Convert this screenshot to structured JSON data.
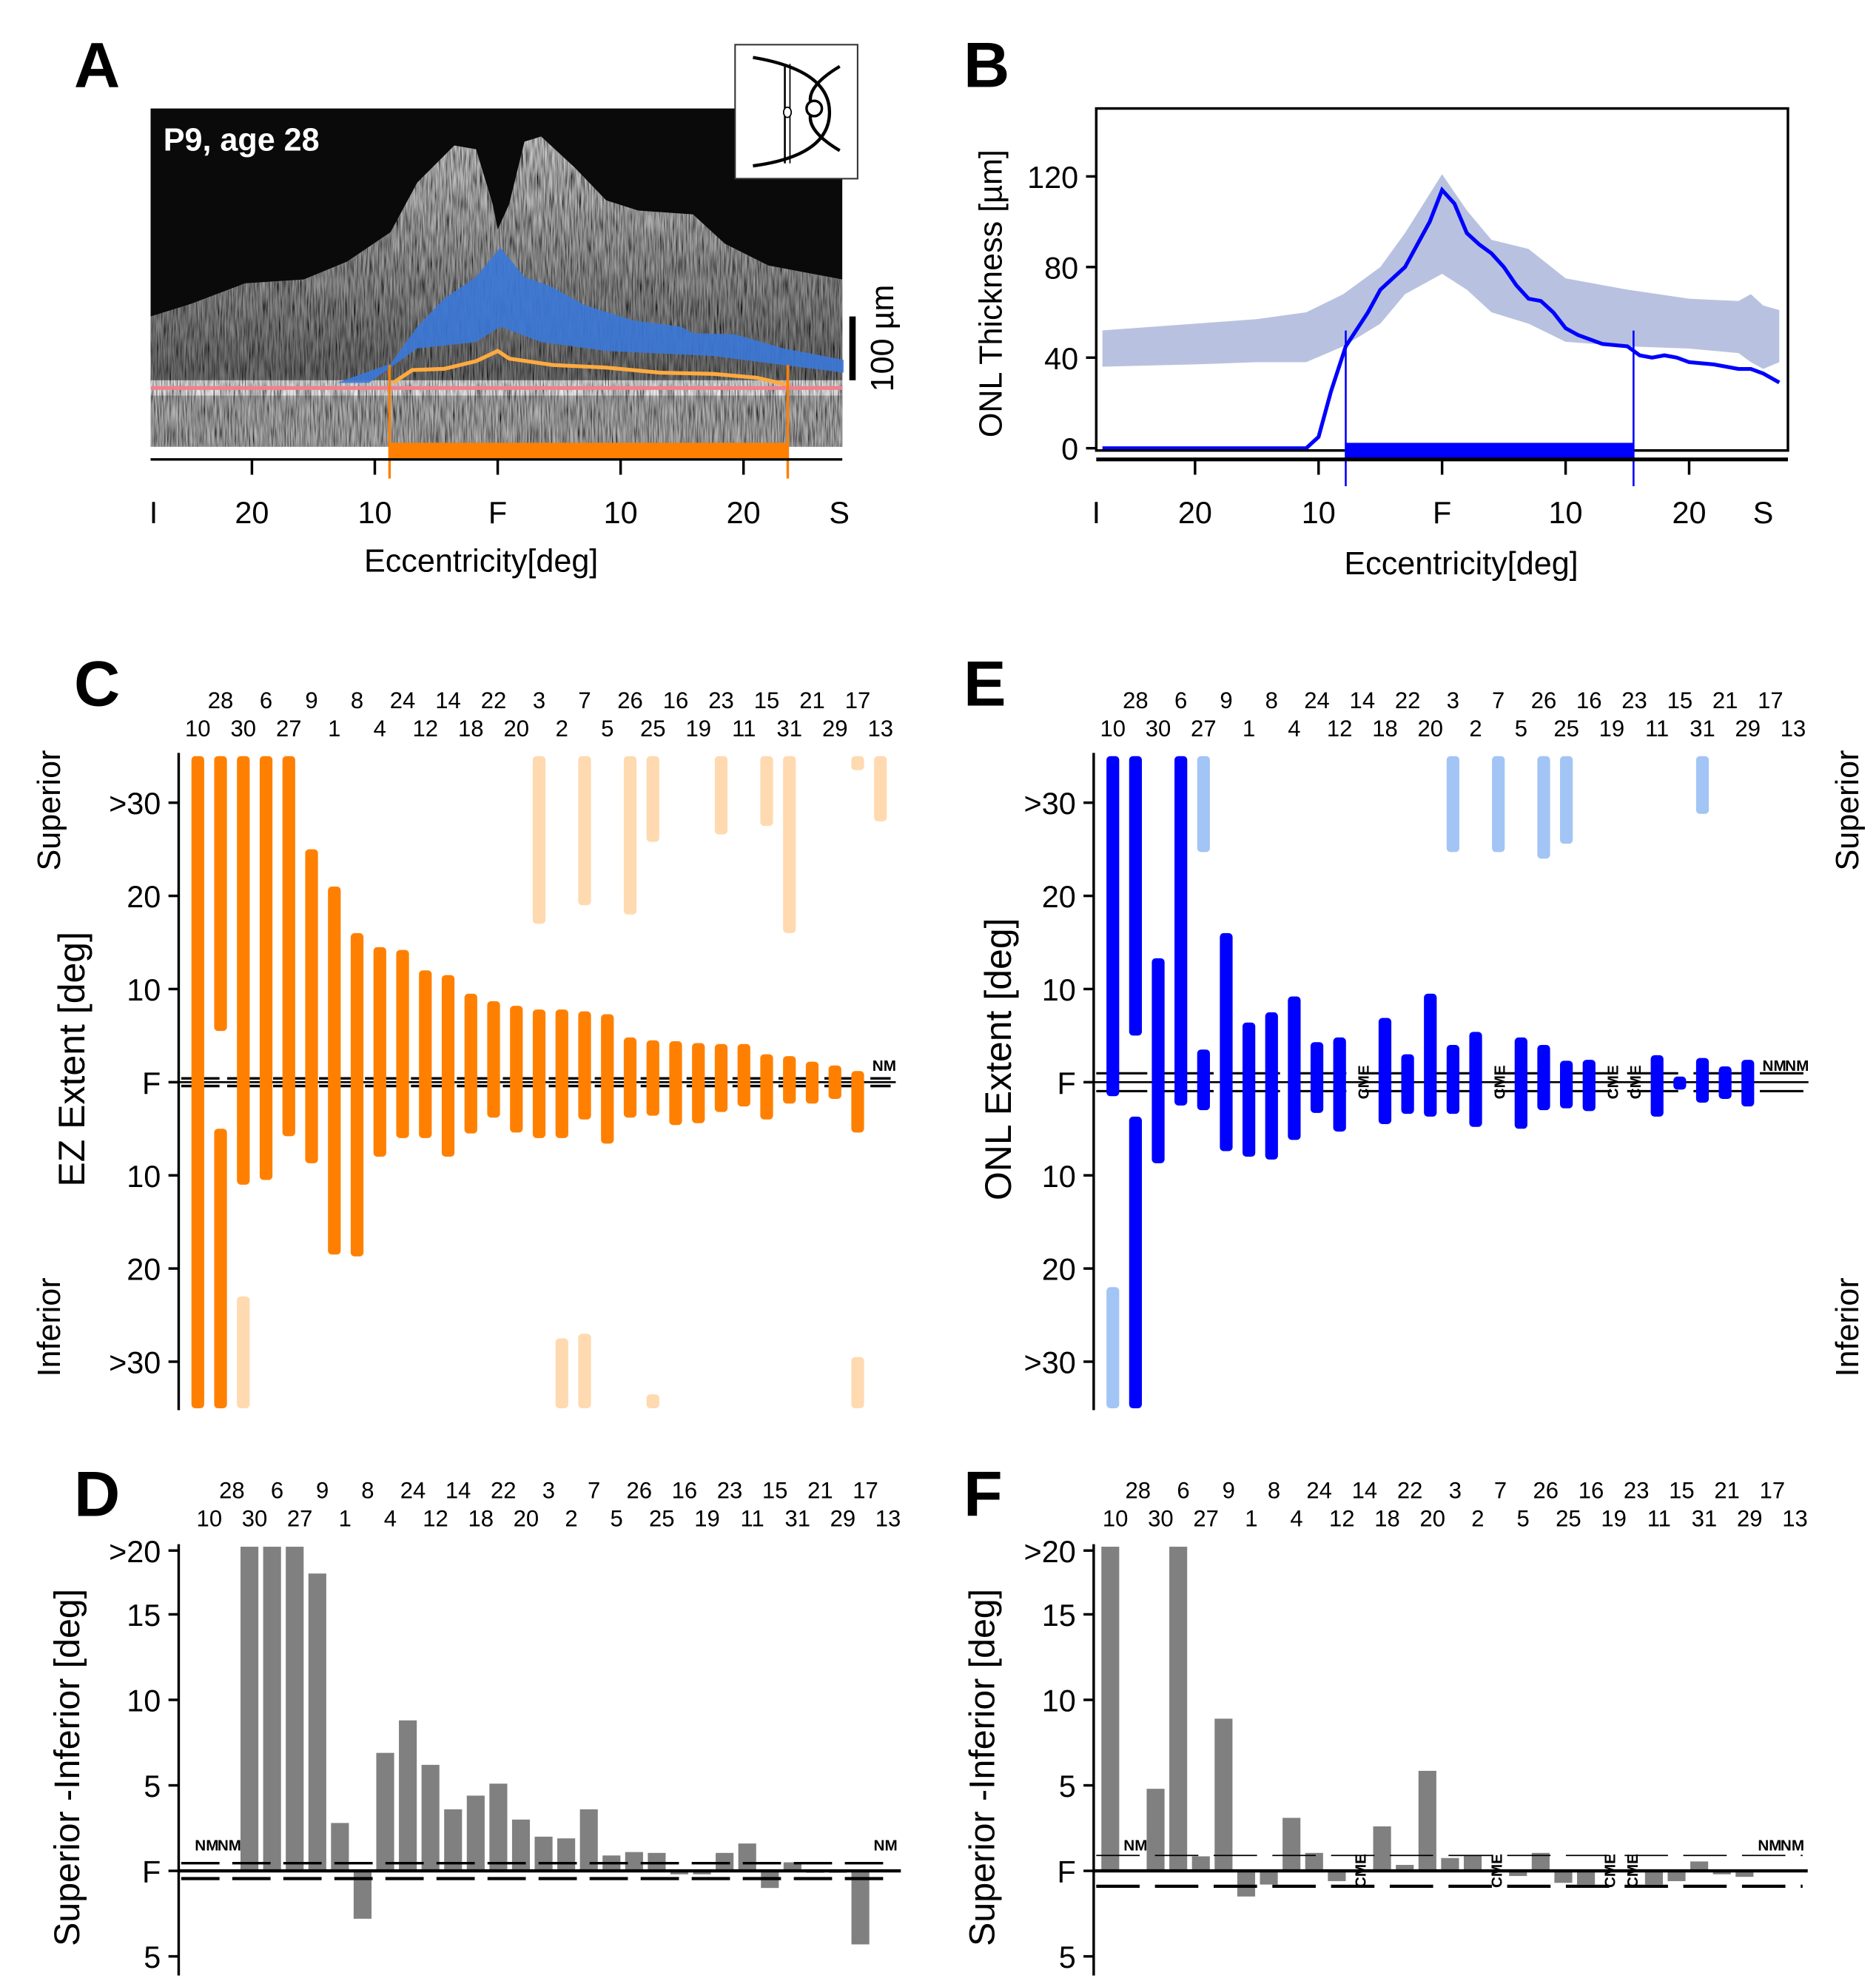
{
  "panel_labels": {
    "A": "A",
    "B": "B",
    "C": "C",
    "D": "D",
    "E": "E",
    "F": "F"
  },
  "colors": {
    "ez": "#ff8000",
    "ez_light": "#ffdab0",
    "onl": "#0000ff",
    "onl_light": "#a3c5f5",
    "diff": "#808080",
    "band": "#b8c2e0",
    "onl_overlay": "#3b78d8",
    "rpe_line": "#f08090"
  },
  "patients": [
    "10",
    "28",
    "30",
    "6",
    "27",
    "9",
    "1",
    "8",
    "4",
    "24",
    "12",
    "14",
    "18",
    "22",
    "20",
    "3",
    "2",
    "7",
    "5",
    "26",
    "25",
    "16",
    "19",
    "23",
    "11",
    "15",
    "31",
    "21",
    "29",
    "17",
    "13"
  ],
  "chart_data": [
    {
      "panel": "A",
      "type": "image",
      "overlay_text": "P9, age 28",
      "scale_bar_label": "100 µm",
      "xlabel": "Eccentricity[deg]",
      "xticks": [
        {
          "v": -28,
          "label": "I"
        },
        {
          "v": -20,
          "label": "20"
        },
        {
          "v": -10,
          "label": "10"
        },
        {
          "v": 0,
          "label": "F"
        },
        {
          "v": 10,
          "label": "10"
        },
        {
          "v": 20,
          "label": "20"
        },
        {
          "v": 27.8,
          "label": "S"
        }
      ],
      "ez_extent_deg": [
        -8.8,
        23.6
      ]
    },
    {
      "panel": "B",
      "type": "line",
      "xlabel": "Eccentricity[deg]",
      "ylabel": "ONL Thickness [µm]",
      "xlim": [
        -28,
        28
      ],
      "ylim": [
        -1,
        150
      ],
      "yticks": [
        0,
        40,
        80,
        120
      ],
      "xticks": [
        {
          "v": -28,
          "label": "I"
        },
        {
          "v": -20,
          "label": "20"
        },
        {
          "v": -10,
          "label": "10"
        },
        {
          "v": 0,
          "label": "F"
        },
        {
          "v": 10,
          "label": "10"
        },
        {
          "v": 20,
          "label": "20"
        },
        {
          "v": 26,
          "label": "S"
        }
      ],
      "series": [
        {
          "name": "patient",
          "x": [
            -27.5,
            -20,
            -13,
            -11,
            -10,
            -9,
            -7.8,
            -6,
            -5,
            -3,
            -1,
            0,
            1,
            2,
            3,
            4,
            5,
            6,
            7,
            8,
            9,
            10,
            11,
            13,
            15,
            16,
            17,
            18,
            19,
            20,
            22,
            24,
            25,
            26,
            27.3
          ],
          "y": [
            0,
            0,
            0,
            0,
            5,
            25,
            45,
            60,
            70,
            80,
            100,
            114,
            108,
            95,
            90,
            86,
            80,
            72,
            66,
            65,
            60,
            53,
            50,
            46,
            45,
            41,
            40,
            41,
            40,
            38,
            37,
            35,
            35,
            33,
            29
          ]
        }
      ],
      "normal_band": {
        "x": [
          -27.5,
          -20,
          -15,
          -11,
          -8,
          -5,
          -3,
          0,
          2,
          4,
          7,
          10,
          15,
          20,
          24,
          25,
          26,
          27.3
        ],
        "lower": [
          36,
          37,
          38,
          38,
          45,
          55,
          68,
          77,
          70,
          60,
          55,
          47,
          45,
          44,
          42,
          38,
          35,
          38
        ],
        "upper": [
          52,
          55,
          57,
          60,
          68,
          80,
          95,
          121,
          105,
          92,
          88,
          75,
          70,
          66,
          65,
          68,
          63,
          61
        ]
      },
      "onl_extent_deg": [
        -7.8,
        15.5
      ]
    },
    {
      "panel": "C",
      "type": "range-bar",
      "ylabel": "EZ Extent [deg]",
      "top_label": "Superior",
      "bottom_label": "Inferior",
      "yticks": [
        {
          "v": 30,
          "label": ">30"
        },
        {
          "v": 20,
          "label": "20"
        },
        {
          "v": 10,
          "label": "10"
        },
        {
          "v": 0,
          "label": "F"
        },
        {
          "v": -10,
          "label": "10"
        },
        {
          "v": -20,
          "label": "20"
        },
        {
          "v": -30,
          "label": ">30"
        }
      ],
      "ylim": [
        -35,
        35
      ],
      "bars": [
        {
          "p": "10",
          "dark": [
            [
              -35,
              35
            ]
          ],
          "light": []
        },
        {
          "p": "28",
          "dark": [
            [
              5.5,
              35
            ],
            [
              -35,
              -5
            ]
          ],
          "light": []
        },
        {
          "p": "30",
          "dark": [
            [
              -11,
              35
            ]
          ],
          "light": [
            [
              -35,
              -23
            ]
          ]
        },
        {
          "p": "6",
          "dark": [
            [
              -10.5,
              35
            ]
          ],
          "light": []
        },
        {
          "p": "27",
          "dark": [
            [
              -5.8,
              35
            ]
          ],
          "light": []
        },
        {
          "p": "9",
          "dark": [
            [
              -8.7,
              25
            ]
          ],
          "light": []
        },
        {
          "p": "1",
          "dark": [
            [
              -18.5,
              21
            ]
          ],
          "light": []
        },
        {
          "p": "8",
          "dark": [
            [
              -18.7,
              16
            ]
          ],
          "light": []
        },
        {
          "p": "4",
          "dark": [
            [
              -8,
              14.5
            ]
          ],
          "light": []
        },
        {
          "p": "24",
          "dark": [
            [
              -6,
              14.2
            ]
          ],
          "light": []
        },
        {
          "p": "12",
          "dark": [
            [
              -6,
              12
            ]
          ],
          "light": []
        },
        {
          "p": "14",
          "dark": [
            [
              -8,
              11.5
            ]
          ],
          "light": []
        },
        {
          "p": "18",
          "dark": [
            [
              -5.5,
              9.5
            ]
          ],
          "light": []
        },
        {
          "p": "22",
          "dark": [
            [
              -3.8,
              8.7
            ]
          ],
          "light": []
        },
        {
          "p": "20",
          "dark": [
            [
              -5.4,
              8.2
            ]
          ],
          "light": []
        },
        {
          "p": "3",
          "dark": [
            [
              -6,
              7.8
            ]
          ],
          "light": [
            [
              17,
              35
            ]
          ]
        },
        {
          "p": "2",
          "dark": [
            [
              -6,
              7.8
            ]
          ],
          "light": [
            [
              -35,
              -27.5
            ]
          ]
        },
        {
          "p": "7",
          "dark": [
            [
              -4,
              7.6
            ]
          ],
          "light": [
            [
              19,
              35
            ],
            [
              -35,
              -27
            ]
          ]
        },
        {
          "p": "5",
          "dark": [
            [
              -6.6,
              7.3
            ]
          ],
          "light": []
        },
        {
          "p": "26",
          "dark": [
            [
              -3.8,
              4.8
            ]
          ],
          "light": [
            [
              18,
              35
            ]
          ]
        },
        {
          "p": "25",
          "dark": [
            [
              -3.6,
              4.5
            ]
          ],
          "light": [
            [
              25.8,
              35
            ],
            [
              -35,
              -33.5
            ]
          ]
        },
        {
          "p": "16",
          "dark": [
            [
              -4.6,
              4.4
            ]
          ],
          "light": []
        },
        {
          "p": "19",
          "dark": [
            [
              -4.4,
              4.2
            ]
          ],
          "light": []
        },
        {
          "p": "23",
          "dark": [
            [
              -3.2,
              4.1
            ]
          ],
          "light": [
            [
              26.6,
              35
            ]
          ]
        },
        {
          "p": "11",
          "dark": [
            [
              -2.6,
              4.1
            ]
          ],
          "light": []
        },
        {
          "p": "15",
          "dark": [
            [
              -4,
              3
            ]
          ],
          "light": [
            [
              27.5,
              35
            ]
          ]
        },
        {
          "p": "31",
          "dark": [
            [
              -2.3,
              2.8
            ]
          ],
          "light": [
            [
              16,
              35
            ]
          ]
        },
        {
          "p": "21",
          "dark": [
            [
              -2.3,
              2.2
            ]
          ],
          "light": []
        },
        {
          "p": "29",
          "dark": [
            [
              -1.8,
              1.8
            ]
          ],
          "light": []
        },
        {
          "p": "17",
          "dark": [
            [
              -5.4,
              1.2
            ]
          ],
          "light": [
            [
              33.5,
              35
            ],
            [
              -35,
              -29.5
            ]
          ]
        },
        {
          "p": "13",
          "dark": [],
          "light": [
            [
              28,
              35
            ]
          ],
          "note": "NM"
        }
      ]
    },
    {
      "panel": "D",
      "type": "bar",
      "ylabel": "Superior -Inferior [deg]",
      "yticks": [
        {
          "v": 20,
          "label": ">20"
        },
        {
          "v": 15,
          "label": "15"
        },
        {
          "v": 10,
          "label": "10"
        },
        {
          "v": 5,
          "label": "5"
        },
        {
          "v": 0,
          "label": "F"
        },
        {
          "v": -5,
          "label": "5"
        }
      ],
      "ylim": [
        -5,
        20
      ],
      "threshold": 0.45,
      "values": [
        "NM",
        "NM",
        ">20",
        ">20",
        ">20",
        18.2,
        2.8,
        -2.8,
        6.9,
        8.8,
        6.2,
        3.6,
        4.4,
        5.1,
        3.0,
        2.0,
        1.9,
        3.6,
        0.9,
        1.1,
        1.05,
        -0.2,
        -0.2,
        1.05,
        1.6,
        -1.0,
        0.5,
        0,
        0,
        -4.3,
        "NM"
      ]
    },
    {
      "panel": "E",
      "type": "range-bar",
      "ylabel": "ONL Extent [deg]",
      "top_label": "Superior",
      "bottom_label": "Inferior",
      "yticks": [
        {
          "v": 30,
          "label": ">30"
        },
        {
          "v": 20,
          "label": "20"
        },
        {
          "v": 10,
          "label": "10"
        },
        {
          "v": 0,
          "label": "F"
        },
        {
          "v": -10,
          "label": "10"
        },
        {
          "v": -20,
          "label": "20"
        },
        {
          "v": -30,
          "label": ">30"
        }
      ],
      "ylim": [
        -35,
        35
      ],
      "bars": [
        {
          "p": "10",
          "dark": [
            [
              -1.5,
              35
            ]
          ],
          "light": [
            [
              -35,
              -22
            ]
          ]
        },
        {
          "p": "28",
          "dark": [
            [
              5,
              35
            ],
            [
              -35,
              -3.7
            ]
          ],
          "light": []
        },
        {
          "p": "30",
          "dark": [
            [
              -8.7,
              13.3
            ]
          ],
          "light": []
        },
        {
          "p": "6",
          "dark": [
            [
              -2.5,
              35
            ]
          ],
          "light": []
        },
        {
          "p": "27",
          "dark": [
            [
              -3,
              3.5
            ]
          ],
          "light": [
            [
              24.7,
              35
            ]
          ]
        },
        {
          "p": "9",
          "dark": [
            [
              -7.4,
              16
            ]
          ],
          "light": []
        },
        {
          "p": "1",
          "dark": [
            [
              -8,
              6.4
            ]
          ],
          "light": []
        },
        {
          "p": "8",
          "dark": [
            [
              -8.3,
              7.5
            ]
          ],
          "light": []
        },
        {
          "p": "4",
          "dark": [
            [
              -6.2,
              9.2
            ]
          ],
          "light": []
        },
        {
          "p": "24",
          "dark": [
            [
              -3.3,
              4.3
            ]
          ],
          "light": []
        },
        {
          "p": "12",
          "dark": [
            [
              -5.3,
              4.8
            ]
          ],
          "light": []
        },
        {
          "p": "14",
          "dark": [],
          "light": [],
          "note": "CME"
        },
        {
          "p": "18",
          "dark": [
            [
              -4.5,
              6.9
            ]
          ],
          "light": []
        },
        {
          "p": "22",
          "dark": [
            [
              -3.4,
              3
            ]
          ],
          "light": []
        },
        {
          "p": "20",
          "dark": [
            [
              -3.7,
              9.5
            ]
          ],
          "light": []
        },
        {
          "p": "3",
          "dark": [
            [
              -3.4,
              4
            ]
          ],
          "light": [
            [
              24.7,
              35
            ]
          ]
        },
        {
          "p": "2",
          "dark": [
            [
              -4.8,
              5.4
            ]
          ],
          "light": []
        },
        {
          "p": "7",
          "dark": [],
          "light": [
            [
              24.7,
              35
            ]
          ],
          "note": "CME"
        },
        {
          "p": "5",
          "dark": [
            [
              -5,
              4.8
            ]
          ],
          "light": []
        },
        {
          "p": "26",
          "dark": [
            [
              -3,
              4
            ]
          ],
          "light": [
            [
              24,
              35
            ]
          ]
        },
        {
          "p": "25",
          "dark": [
            [
              -2.8,
              2.3
            ]
          ],
          "light": [
            [
              25.6,
              35
            ]
          ]
        },
        {
          "p": "16",
          "dark": [
            [
              -3.1,
              2.4
            ]
          ],
          "light": []
        },
        {
          "p": "19",
          "dark": [],
          "light": [],
          "note": "CME"
        },
        {
          "p": "23",
          "dark": [],
          "light": [],
          "note": "CME"
        },
        {
          "p": "11",
          "dark": [
            [
              -3.7,
              2.9
            ]
          ],
          "light": []
        },
        {
          "p": "15",
          "dark": [
            [
              -0.8,
              0.6
            ]
          ],
          "light": []
        },
        {
          "p": "31",
          "dark": [
            [
              -2.2,
              2.6
            ]
          ],
          "light": [
            [
              28.8,
              35
            ]
          ]
        },
        {
          "p": "21",
          "dark": [
            [
              -1.8,
              1.7
            ]
          ],
          "light": []
        },
        {
          "p": "29",
          "dark": [
            [
              -2.6,
              2.4
            ]
          ],
          "light": []
        },
        {
          "p": "17",
          "dark": [],
          "light": [],
          "note": "NM"
        },
        {
          "p": "13",
          "dark": [],
          "light": [],
          "note": "NM"
        }
      ]
    },
    {
      "panel": "F",
      "type": "bar",
      "ylabel": "Superior -Inferior [deg]",
      "yticks": [
        {
          "v": 20,
          "label": ">20"
        },
        {
          "v": 15,
          "label": "15"
        },
        {
          "v": 10,
          "label": "10"
        },
        {
          "v": 5,
          "label": "5"
        },
        {
          "v": 0,
          "label": "F"
        },
        {
          "v": -5,
          "label": "5"
        }
      ],
      "ylim": [
        -5,
        20
      ],
      "threshold": 0.9,
      "values": [
        ">20",
        "NM",
        4.8,
        ">20",
        0.85,
        8.9,
        -1.5,
        -0.8,
        3.1,
        1.05,
        -0.6,
        "CME",
        2.6,
        0.35,
        5.85,
        0.75,
        0.9,
        "CME",
        -0.3,
        1.05,
        -0.7,
        -0.8,
        "CME",
        "CME",
        -0.8,
        -0.6,
        0.55,
        -0.2,
        -0.35,
        "NM",
        "NM"
      ]
    }
  ]
}
